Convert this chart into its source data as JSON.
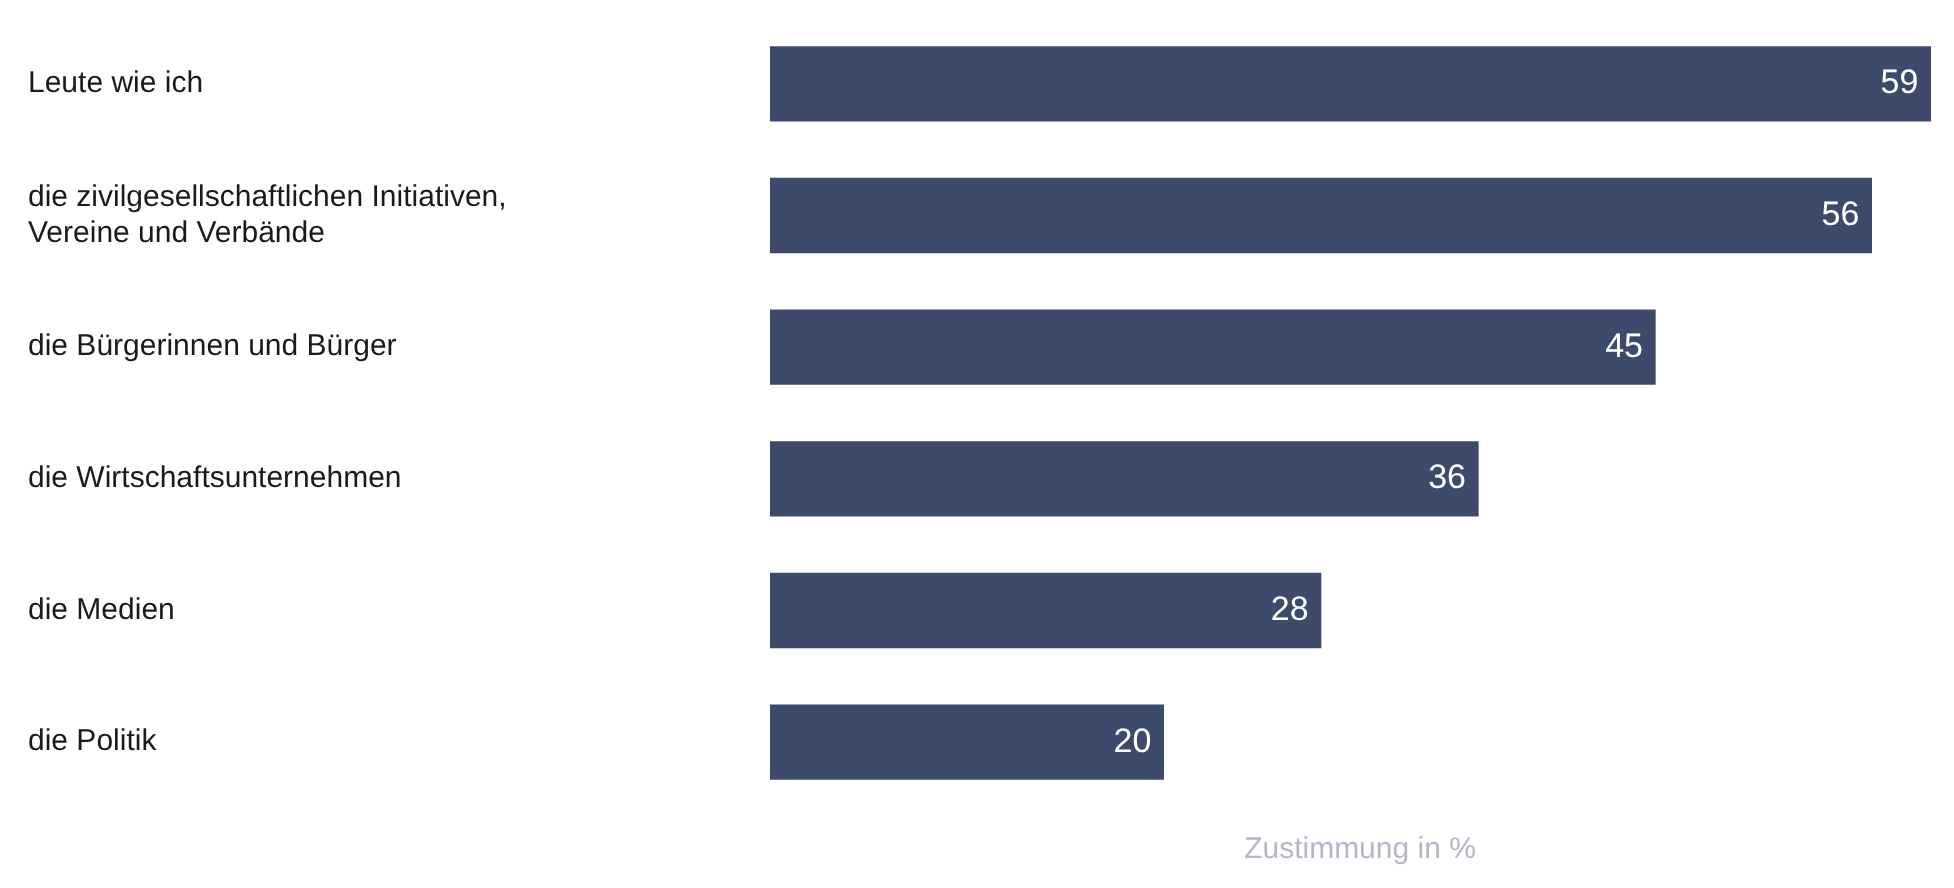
{
  "chart_data": {
    "type": "bar",
    "orientation": "horizontal",
    "xlabel": "Zustimmung in %",
    "categories": [
      "Leute wie ich",
      "die zivilgesellschaftlichen Initiativen, Vereine und Verbände",
      "die Bürgerinnen und Bürger",
      "die Wirtschaftsunternehmen",
      "die Medien",
      "die Politik"
    ],
    "values": [
      59,
      56,
      45,
      36,
      28,
      20
    ],
    "color": "#3d4a6b",
    "data_labels": true,
    "grid": false,
    "legend": false
  }
}
